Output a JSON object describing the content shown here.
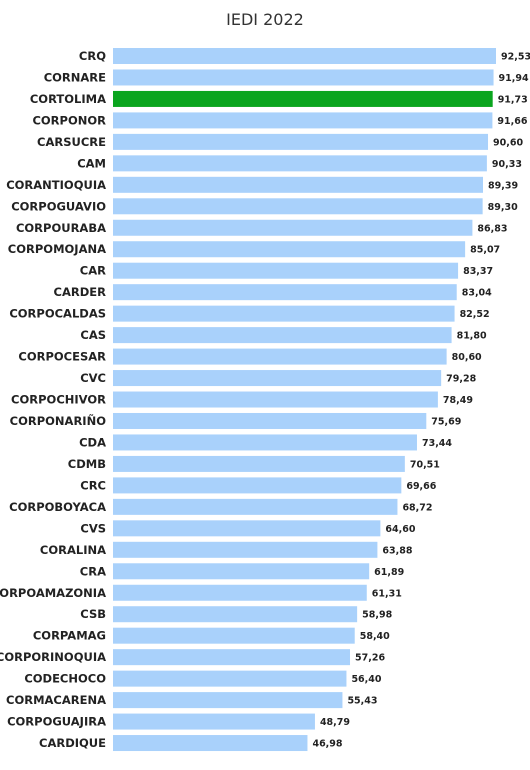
{
  "chart_data": {
    "type": "bar",
    "orientation": "horizontal",
    "title": "IEDI 2022",
    "xlabel": "",
    "ylabel": "",
    "grid": false,
    "categories": [
      "CRQ",
      "CORNARE",
      "CORTOLIMA",
      "CORPONOR",
      "CARSUCRE",
      "CAM",
      "CORANTIOQUIA",
      "CORPOGUAVIO",
      "CORPOURABA",
      "CORPOMOJANA",
      "CAR",
      "CARDER",
      "CORPOCALDAS",
      "CAS",
      "CORPOCESAR",
      "CVC",
      "CORPOCHIVOR",
      "CORPONARIÑO",
      "CDA",
      "CDMB",
      "CRC",
      "CORPOBOYACA",
      "CVS",
      "CORALINA",
      "CRA",
      "CORPOAMAZONIA",
      "CSB",
      "CORPAMAG",
      "CORPORINOQUIA",
      "CODECHOCO",
      "CORMACARENA",
      "CORPOGUAJIRA",
      "CARDIQUE"
    ],
    "values": [
      92.53,
      91.94,
      91.73,
      91.66,
      90.6,
      90.33,
      89.39,
      89.3,
      86.83,
      85.07,
      83.37,
      83.04,
      82.52,
      81.8,
      80.6,
      79.28,
      78.49,
      75.69,
      73.44,
      70.51,
      69.66,
      68.72,
      64.6,
      63.88,
      61.89,
      61.31,
      58.98,
      58.4,
      57.26,
      56.4,
      55.43,
      48.79,
      46.98
    ],
    "value_labels": [
      "92,53",
      "91,94",
      "91,73",
      "91,66",
      "90,60",
      "90,33",
      "89,39",
      "89,30",
      "86,83",
      "85,07",
      "83,37",
      "83,04",
      "82,52",
      "81,80",
      "80,60",
      "79,28",
      "78,49",
      "75,69",
      "73,44",
      "70,51",
      "69,66",
      "68,72",
      "64,60",
      "63,88",
      "61,89",
      "61,31",
      "58,98",
      "58,40",
      "57,26",
      "56,40",
      "55,43",
      "48,79",
      "46,98"
    ],
    "highlight_category": "CORTOLIMA",
    "colors": {
      "bar": "#a9d1fb",
      "highlight": "#0aa51e",
      "text": "#222222"
    }
  }
}
